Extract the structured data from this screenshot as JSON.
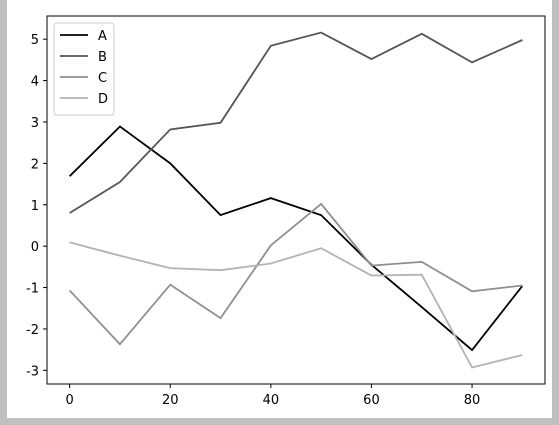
{
  "chart_data": {
    "type": "line",
    "x": [
      0,
      10,
      20,
      30,
      40,
      50,
      60,
      70,
      80,
      90
    ],
    "series": [
      {
        "name": "A",
        "color": "#000000",
        "values": [
          1.69,
          2.89,
          2.0,
          0.75,
          1.16,
          0.75,
          -0.45,
          -1.47,
          -2.51,
          -0.96
        ]
      },
      {
        "name": "B",
        "color": "#555555",
        "values": [
          0.8,
          1.55,
          2.82,
          2.98,
          4.84,
          5.16,
          4.52,
          5.13,
          4.44,
          4.98
        ]
      },
      {
        "name": "C",
        "color": "#8f8f8f",
        "values": [
          -1.07,
          -2.37,
          -0.93,
          -1.74,
          0.02,
          1.02,
          -0.47,
          -0.38,
          -1.09,
          -0.95
        ]
      },
      {
        "name": "D",
        "color": "#b3b3b3",
        "values": [
          0.09,
          -0.23,
          -0.53,
          -0.58,
          -0.42,
          -0.05,
          -0.71,
          -0.69,
          -2.93,
          -2.63
        ]
      }
    ],
    "xlim": [
      -4.5,
      94.5
    ],
    "xticks": [
      0,
      20,
      40,
      60,
      80
    ],
    "ylim": [
      -3.33,
      5.56
    ],
    "yticks": [
      -3,
      -2,
      -1,
      0,
      1,
      2,
      3,
      4,
      5
    ],
    "legend": "upper left"
  }
}
